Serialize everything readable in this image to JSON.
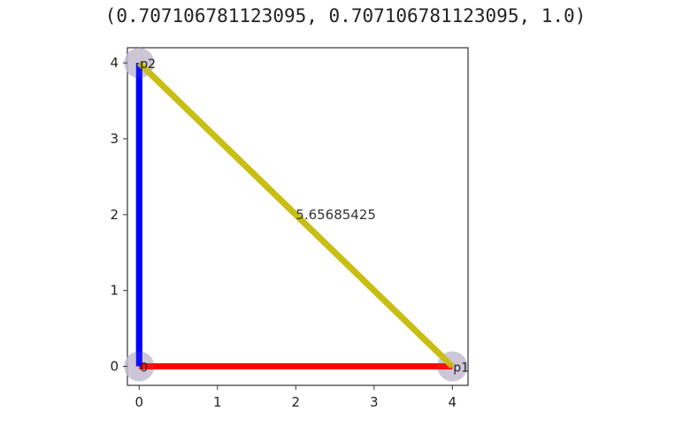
{
  "output_text": "(0.707106781123095, 0.707106781123095, 1.0)",
  "chart_data": {
    "type": "line",
    "title": "",
    "xlabel": "",
    "ylabel": "",
    "xlim": [
      -0.15,
      4.2
    ],
    "ylim": [
      -0.25,
      4.2
    ],
    "xticks": [
      "0",
      "1",
      "2",
      "3",
      "4"
    ],
    "yticks": [
      "0",
      "1",
      "2",
      "3",
      "4"
    ],
    "grid": false,
    "points": [
      {
        "label": "0",
        "x": 0,
        "y": 0
      },
      {
        "label": "p1",
        "x": 4,
        "y": 0
      },
      {
        "label": "p2",
        "x": 0,
        "y": 4
      }
    ],
    "segments": [
      {
        "from": [
          0,
          0
        ],
        "to": [
          4,
          0
        ],
        "color": "#ff0000"
      },
      {
        "from": [
          0,
          0
        ],
        "to": [
          0,
          4
        ],
        "color": "#0000ff"
      },
      {
        "from": [
          4,
          0
        ],
        "to": [
          0,
          4
        ],
        "color": "#c8be14",
        "label": "5.65685425"
      }
    ],
    "marker_color": "#c4bcd0"
  }
}
